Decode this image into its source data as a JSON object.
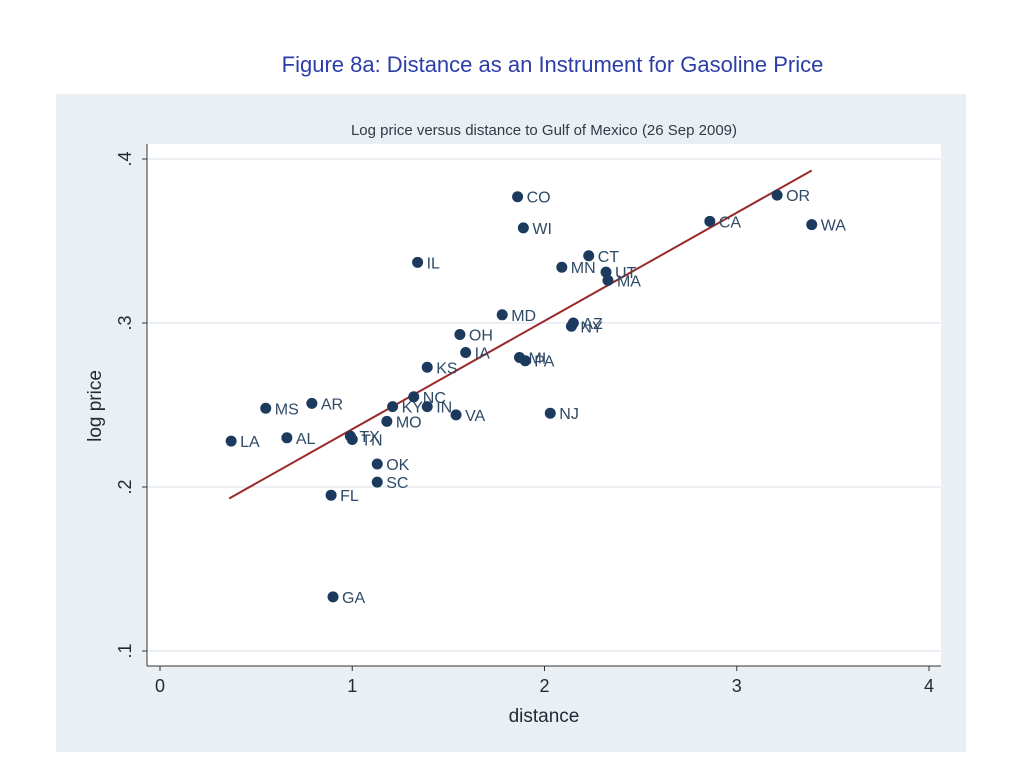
{
  "page": {
    "caption": "Figure 8a: Distance as an Instrument for Gasoline Price"
  },
  "colors": {
    "panel_bg": "#e9eff3",
    "plot_bg": "#ffffff",
    "marker": "#1c3a5e",
    "fit_line": "#9a2a2a",
    "label_text": "#2f4a66",
    "caption_text": "#2b3ea8"
  },
  "chart_data": {
    "type": "scatter",
    "title": "Log price versus distance to Gulf of Mexico (26 Sep 2009)",
    "xlabel": "distance",
    "ylabel": "log price",
    "xlim": [
      0,
      4
    ],
    "ylim": [
      0.1,
      0.4
    ],
    "x_ticks": [
      0,
      1,
      2,
      3,
      4
    ],
    "x_tick_labels": [
      "0",
      "1",
      "2",
      "3",
      "4"
    ],
    "y_ticks": [
      0.1,
      0.2,
      0.3,
      0.4
    ],
    "y_tick_labels": [
      ".1",
      ".2",
      ".3",
      ".4"
    ],
    "grid": "horizontal",
    "points": [
      {
        "label": "CO",
        "x": 1.86,
        "y": 0.377
      },
      {
        "label": "OR",
        "x": 3.21,
        "y": 0.378
      },
      {
        "label": "CA",
        "x": 2.86,
        "y": 0.362
      },
      {
        "label": "WA",
        "x": 3.39,
        "y": 0.36
      },
      {
        "label": "WI",
        "x": 1.89,
        "y": 0.358
      },
      {
        "label": "CT",
        "x": 2.23,
        "y": 0.341
      },
      {
        "label": "IL",
        "x": 1.34,
        "y": 0.337
      },
      {
        "label": "MN",
        "x": 2.09,
        "y": 0.334
      },
      {
        "label": "UT",
        "x": 2.32,
        "y": 0.331
      },
      {
        "label": "MA",
        "x": 2.33,
        "y": 0.326
      },
      {
        "label": "MD",
        "x": 1.78,
        "y": 0.305
      },
      {
        "label": "AZ",
        "x": 2.15,
        "y": 0.3
      },
      {
        "label": "NY",
        "x": 2.14,
        "y": 0.298
      },
      {
        "label": "OH",
        "x": 1.56,
        "y": 0.293
      },
      {
        "label": "IA",
        "x": 1.59,
        "y": 0.282
      },
      {
        "label": "MI",
        "x": 1.87,
        "y": 0.279
      },
      {
        "label": "PA",
        "x": 1.9,
        "y": 0.277
      },
      {
        "label": "KS",
        "x": 1.39,
        "y": 0.273
      },
      {
        "label": "NC",
        "x": 1.32,
        "y": 0.255
      },
      {
        "label": "AR",
        "x": 0.79,
        "y": 0.251
      },
      {
        "label": "MS",
        "x": 0.55,
        "y": 0.248
      },
      {
        "label": "KY",
        "x": 1.21,
        "y": 0.249
      },
      {
        "label": "IN",
        "x": 1.39,
        "y": 0.249
      },
      {
        "label": "VA",
        "x": 1.54,
        "y": 0.244
      },
      {
        "label": "NJ",
        "x": 2.03,
        "y": 0.245
      },
      {
        "label": "MO",
        "x": 1.18,
        "y": 0.24
      },
      {
        "label": "AL",
        "x": 0.66,
        "y": 0.23
      },
      {
        "label": "LA",
        "x": 0.37,
        "y": 0.228
      },
      {
        "label": "TX",
        "x": 0.99,
        "y": 0.231
      },
      {
        "label": "TN",
        "x": 1.0,
        "y": 0.229
      },
      {
        "label": "OK",
        "x": 1.13,
        "y": 0.214
      },
      {
        "label": "SC",
        "x": 1.13,
        "y": 0.203
      },
      {
        "label": "FL",
        "x": 0.89,
        "y": 0.195
      },
      {
        "label": "GA",
        "x": 0.9,
        "y": 0.133
      }
    ],
    "fit_line": {
      "x": [
        0.36,
        3.39
      ],
      "y": [
        0.193,
        0.393
      ]
    }
  }
}
